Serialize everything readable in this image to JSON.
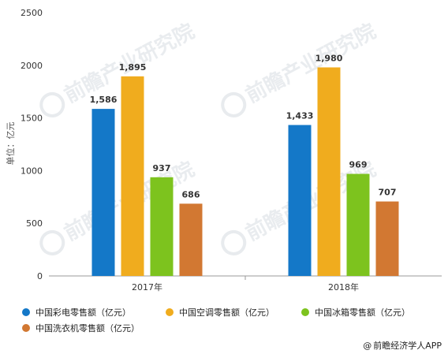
{
  "chart_data": {
    "type": "bar",
    "categories": [
      "2017年",
      "2018年"
    ],
    "series": [
      {
        "name": "中国彩电零售额（亿元）",
        "values": [
          1586,
          1433
        ],
        "color": "#1478c8"
      },
      {
        "name": "中国空调零售额（亿元）",
        "values": [
          1895,
          1980
        ],
        "color": "#f0ac1e"
      },
      {
        "name": "中国冰箱零售额（亿元）",
        "values": [
          937,
          969
        ],
        "color": "#7dc31e"
      },
      {
        "name": "中国洗衣机零售额（亿元）",
        "values": [
          686,
          707
        ],
        "color": "#d27832"
      }
    ],
    "value_labels": [
      [
        "1,586",
        "1,433"
      ],
      [
        "1,895",
        "1,980"
      ],
      [
        "937",
        "969"
      ],
      [
        "686",
        "707"
      ]
    ],
    "ylabel": "单位：亿元",
    "ylim": [
      0,
      2500
    ],
    "yticks": [
      "0",
      "500",
      "1000",
      "1500",
      "2000",
      "2500"
    ],
    "grid": false,
    "legend_position": "bottom"
  },
  "watermark": {
    "text": "前瞻产业研究院"
  },
  "source": {
    "text": "前瞻经济学人APP",
    "icon": "at-icon"
  }
}
